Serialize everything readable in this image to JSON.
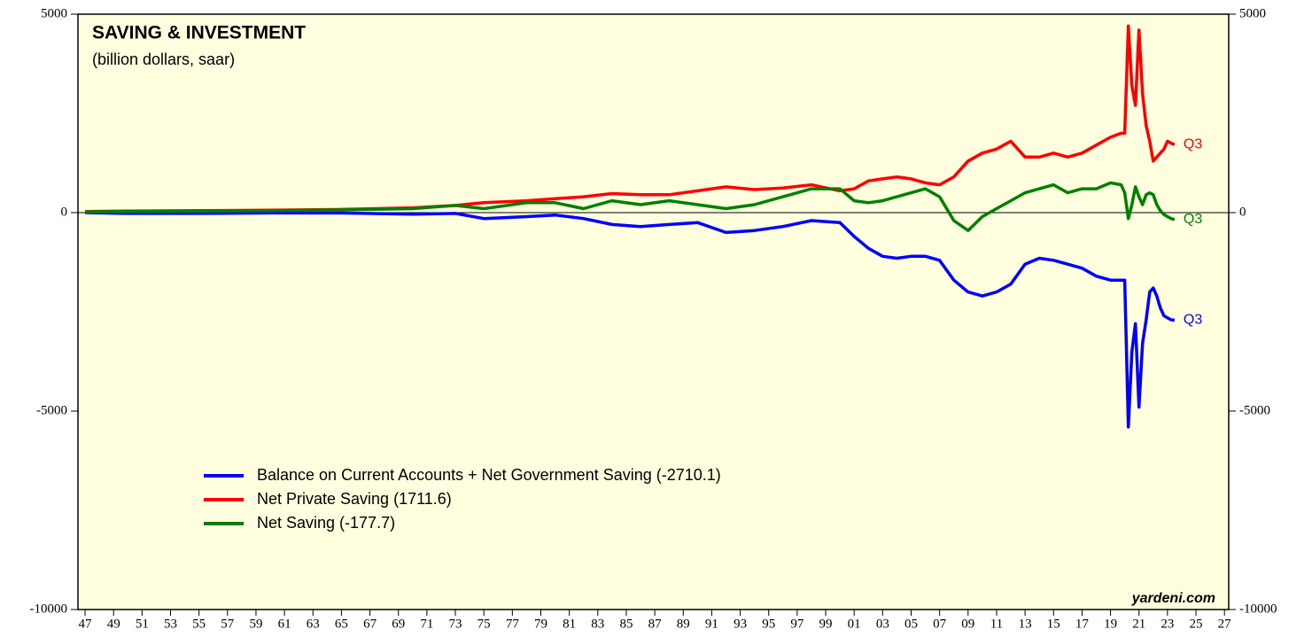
{
  "chart_data": {
    "type": "line",
    "title": "SAVING & INVESTMENT",
    "subtitle": "(billion dollars, saar)",
    "source": "yardeni.com",
    "x": [
      1947,
      1950,
      1955,
      1960,
      1965,
      1970,
      1973,
      1975,
      1978,
      1980,
      1982,
      1984,
      1986,
      1988,
      1990,
      1992,
      1994,
      1996,
      1998,
      2000,
      2001,
      2002,
      2003,
      2004,
      2005,
      2006,
      2007,
      2008,
      2009,
      2010,
      2011,
      2012,
      2013,
      2014,
      2015,
      2016,
      2017,
      2018,
      2019,
      2019.75,
      2020,
      2020.25,
      2020.5,
      2020.75,
      2021,
      2021.25,
      2021.5,
      2021.75,
      2022,
      2022.25,
      2022.5,
      2022.75,
      2023,
      2023.25,
      2023.5
    ],
    "series": [
      {
        "name": "Balance on Current Accounts + Net Government Saving (-2710.1)",
        "color": "#0000ff",
        "end_label": "Q3",
        "values": [
          0,
          -20,
          -20,
          -10,
          -10,
          -40,
          -20,
          -150,
          -100,
          -60,
          -150,
          -300,
          -350,
          -300,
          -250,
          -500,
          -450,
          -350,
          -200,
          -250,
          -600,
          -900,
          -1100,
          -1150,
          -1100,
          -1100,
          -1200,
          -1700,
          -2000,
          -2100,
          -2000,
          -1800,
          -1300,
          -1150,
          -1200,
          -1300,
          -1400,
          -1600,
          -1700,
          -1700,
          -1700,
          -5400,
          -3500,
          -2800,
          -4900,
          -3300,
          -2700,
          -2000,
          -1900,
          -2100,
          -2400,
          -2600,
          -2650,
          -2700,
          -2710.1
        ]
      },
      {
        "name": "Net Private Saving (1711.6)",
        "color": "#ff0000",
        "end_label": "Q3",
        "values": [
          30,
          40,
          50,
          60,
          80,
          120,
          180,
          250,
          300,
          350,
          400,
          480,
          450,
          450,
          550,
          650,
          580,
          620,
          700,
          550,
          600,
          800,
          850,
          900,
          850,
          750,
          700,
          900,
          1300,
          1500,
          1600,
          1800,
          1400,
          1400,
          1500,
          1400,
          1500,
          1700,
          1900,
          2000,
          2000,
          4700,
          3200,
          2700,
          4600,
          3000,
          2200,
          1800,
          1300,
          1400,
          1500,
          1600,
          1800,
          1750,
          1711.6
        ]
      },
      {
        "name": "Net Saving (-177.7)",
        "color": "#008000",
        "end_label": "Q3",
        "values": [
          20,
          30,
          40,
          50,
          70,
          100,
          180,
          100,
          250,
          250,
          100,
          300,
          200,
          300,
          200,
          100,
          200,
          400,
          600,
          600,
          300,
          250,
          300,
          400,
          500,
          600,
          400,
          -200,
          -450,
          -100,
          100,
          300,
          500,
          600,
          700,
          500,
          600,
          600,
          750,
          700,
          500,
          -150,
          200,
          650,
          400,
          200,
          450,
          500,
          450,
          200,
          50,
          -50,
          -100,
          -150,
          -177.7
        ]
      }
    ],
    "xlim": [
      1946.5,
      2027.3
    ],
    "xticks": [
      {
        "value": 1947,
        "label": "47"
      },
      {
        "value": 1949,
        "label": "49"
      },
      {
        "value": 1951,
        "label": "51"
      },
      {
        "value": 1953,
        "label": "53"
      },
      {
        "value": 1955,
        "label": "55"
      },
      {
        "value": 1957,
        "label": "57"
      },
      {
        "value": 1959,
        "label": "59"
      },
      {
        "value": 1961,
        "label": "61"
      },
      {
        "value": 1963,
        "label": "63"
      },
      {
        "value": 1965,
        "label": "65"
      },
      {
        "value": 1967,
        "label": "67"
      },
      {
        "value": 1969,
        "label": "69"
      },
      {
        "value": 1971,
        "label": "71"
      },
      {
        "value": 1973,
        "label": "73"
      },
      {
        "value": 1975,
        "label": "75"
      },
      {
        "value": 1977,
        "label": "77"
      },
      {
        "value": 1979,
        "label": "79"
      },
      {
        "value": 1981,
        "label": "81"
      },
      {
        "value": 1983,
        "label": "83"
      },
      {
        "value": 1985,
        "label": "85"
      },
      {
        "value": 1987,
        "label": "87"
      },
      {
        "value": 1989,
        "label": "89"
      },
      {
        "value": 1991,
        "label": "91"
      },
      {
        "value": 1993,
        "label": "93"
      },
      {
        "value": 1995,
        "label": "95"
      },
      {
        "value": 1997,
        "label": "97"
      },
      {
        "value": 1999,
        "label": "99"
      },
      {
        "value": 2001,
        "label": "01"
      },
      {
        "value": 2003,
        "label": "03"
      },
      {
        "value": 2005,
        "label": "05"
      },
      {
        "value": 2007,
        "label": "07"
      },
      {
        "value": 2009,
        "label": "09"
      },
      {
        "value": 2011,
        "label": "11"
      },
      {
        "value": 2013,
        "label": "13"
      },
      {
        "value": 2015,
        "label": "15"
      },
      {
        "value": 2017,
        "label": "17"
      },
      {
        "value": 2019,
        "label": "19"
      },
      {
        "value": 2021,
        "label": "21"
      },
      {
        "value": 2023,
        "label": "23"
      },
      {
        "value": 2025,
        "label": "25"
      },
      {
        "value": 2027,
        "label": "27"
      }
    ],
    "ylim": [
      -10000,
      5000
    ],
    "yticks": [
      -10000,
      -5000,
      0,
      5000
    ],
    "zero_line": true
  }
}
